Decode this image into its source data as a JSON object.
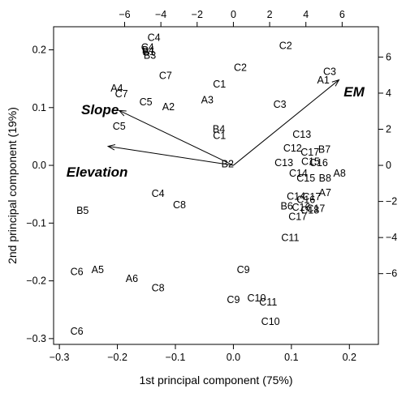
{
  "chart_data": {
    "type": "scatter",
    "title": "",
    "xlabel": "1st principal component (75%)",
    "ylabel": "2nd principal component (19%)",
    "xlim": [
      -0.31,
      0.25
    ],
    "ylim": [
      -0.31,
      0.24
    ],
    "x_ticks": [
      -0.3,
      -0.2,
      -0.1,
      0.0,
      0.1,
      0.2
    ],
    "x_tick_labels": [
      "−0.3",
      "−0.2",
      "−0.1",
      "0.0",
      "0.1",
      "0.2"
    ],
    "y_ticks": [
      -0.3,
      -0.2,
      -0.1,
      0.0,
      0.1,
      0.2
    ],
    "y_tick_labels": [
      "−0.3",
      "−0.2",
      "−0.1",
      "0.0",
      "0.1",
      "0.2"
    ],
    "top_ticks": [
      -6,
      -4,
      -2,
      0,
      2,
      4,
      6
    ],
    "top_tick_labels": [
      "−6",
      "−4",
      "−2",
      "0",
      "2",
      "4",
      "6"
    ],
    "right_ticks": [
      -6,
      -4,
      -2,
      0,
      2,
      4,
      6
    ],
    "right_tick_labels": [
      "−6",
      "−4",
      "−2",
      "0",
      "2",
      "4",
      "6"
    ],
    "secondary_scale": 0.03125,
    "grid": false,
    "legend": "none",
    "points": [
      {
        "label": "C4",
        "x": -0.137,
        "y": 0.222
      },
      {
        "label": "C4",
        "x": -0.148,
        "y": 0.205
      },
      {
        "label": "B4",
        "x": -0.147,
        "y": 0.2
      },
      {
        "label": "B1",
        "x": -0.146,
        "y": 0.197
      },
      {
        "label": "B3",
        "x": -0.144,
        "y": 0.191
      },
      {
        "label": "C2",
        "x": 0.09,
        "y": 0.208
      },
      {
        "label": "C7",
        "x": -0.117,
        "y": 0.156
      },
      {
        "label": "C2",
        "x": 0.012,
        "y": 0.17
      },
      {
        "label": "C1",
        "x": -0.024,
        "y": 0.141
      },
      {
        "label": "C3",
        "x": 0.166,
        "y": 0.163
      },
      {
        "label": "A1",
        "x": 0.155,
        "y": 0.148
      },
      {
        "label": "A4",
        "x": -0.201,
        "y": 0.134
      },
      {
        "label": "C7",
        "x": -0.193,
        "y": 0.124
      },
      {
        "label": "C5",
        "x": -0.151,
        "y": 0.11
      },
      {
        "label": "A3",
        "x": -0.045,
        "y": 0.114
      },
      {
        "label": "A2",
        "x": -0.112,
        "y": 0.102
      },
      {
        "label": "C3",
        "x": 0.08,
        "y": 0.106
      },
      {
        "label": "C5",
        "x": -0.197,
        "y": 0.068
      },
      {
        "label": "B4",
        "x": -0.025,
        "y": 0.063
      },
      {
        "label": "C1",
        "x": -0.024,
        "y": 0.052
      },
      {
        "label": "C13",
        "x": 0.118,
        "y": 0.054
      },
      {
        "label": "C12",
        "x": 0.102,
        "y": 0.03
      },
      {
        "label": "C17",
        "x": 0.132,
        "y": 0.023
      },
      {
        "label": "B7",
        "x": 0.157,
        "y": 0.028
      },
      {
        "label": "C13",
        "x": 0.087,
        "y": 0.005
      },
      {
        "label": "C15",
        "x": 0.133,
        "y": 0.007
      },
      {
        "label": "C16",
        "x": 0.147,
        "y": 0.005
      },
      {
        "label": "B2",
        "x": -0.01,
        "y": 0.003
      },
      {
        "label": "C14",
        "x": 0.112,
        "y": -0.013
      },
      {
        "label": "C15",
        "x": 0.125,
        "y": -0.022
      },
      {
        "label": "B8",
        "x": 0.158,
        "y": -0.022
      },
      {
        "label": "A8",
        "x": 0.183,
        "y": -0.013
      },
      {
        "label": "C4",
        "x": -0.13,
        "y": -0.048
      },
      {
        "label": "C8",
        "x": -0.093,
        "y": -0.068
      },
      {
        "label": "C14",
        "x": 0.108,
        "y": -0.053
      },
      {
        "label": "C16",
        "x": 0.125,
        "y": -0.059
      },
      {
        "label": "C17",
        "x": 0.135,
        "y": -0.054
      },
      {
        "label": "A7",
        "x": 0.158,
        "y": -0.047
      },
      {
        "label": "B6",
        "x": 0.092,
        "y": -0.07
      },
      {
        "label": "C16",
        "x": 0.117,
        "y": -0.072
      },
      {
        "label": "C18",
        "x": 0.132,
        "y": -0.077
      },
      {
        "label": "C17",
        "x": 0.142,
        "y": -0.074
      },
      {
        "label": "C17",
        "x": 0.111,
        "y": -0.088
      },
      {
        "label": "B5",
        "x": -0.26,
        "y": -0.078
      },
      {
        "label": "C11",
        "x": 0.098,
        "y": -0.125
      },
      {
        "label": "A5",
        "x": -0.234,
        "y": -0.18
      },
      {
        "label": "C6",
        "x": -0.27,
        "y": -0.184
      },
      {
        "label": "A6",
        "x": -0.175,
        "y": -0.196
      },
      {
        "label": "C9",
        "x": 0.017,
        "y": -0.18
      },
      {
        "label": "C8",
        "x": -0.13,
        "y": -0.212
      },
      {
        "label": "C10",
        "x": 0.04,
        "y": -0.229
      },
      {
        "label": "C9",
        "x": 0.0,
        "y": -0.232
      },
      {
        "label": "C11",
        "x": 0.06,
        "y": -0.236
      },
      {
        "label": "C10",
        "x": 0.064,
        "y": -0.27
      },
      {
        "label": "C6",
        "x": -0.27,
        "y": -0.287
      }
    ],
    "vectors": [
      {
        "label": "Slope",
        "x": -0.197,
        "y": 0.095
      },
      {
        "label": "Elevation",
        "x": -0.216,
        "y": 0.033
      },
      {
        "label": "EM",
        "x": 0.182,
        "y": 0.148
      }
    ],
    "vector_labels_at": [
      {
        "label": "Slope",
        "x": -0.23,
        "y": 0.097
      },
      {
        "label": "Elevation",
        "x": -0.235,
        "y": -0.011
      },
      {
        "label": "EM",
        "x": 0.208,
        "y": 0.128
      }
    ]
  }
}
